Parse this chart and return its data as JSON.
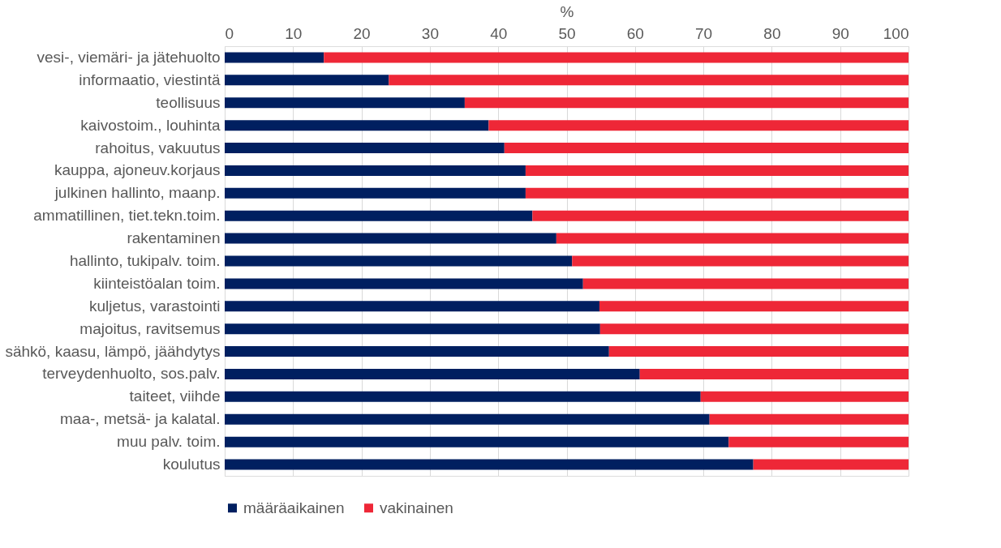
{
  "chart_data": {
    "type": "bar",
    "orientation": "horizontal",
    "stacked": true,
    "xlabel": "%",
    "categories": [
      "vesi-, viemäri- ja jätehuolto",
      "informaatio, viestintä",
      "teollisuus",
      "kaivostoim., louhinta",
      "rahoitus, vakuutus",
      "kauppa, ajoneuv.korjaus",
      "julkinen hallinto, maanp.",
      "ammatillinen, tiet.tekn.toim.",
      "rakentaminen",
      "hallinto, tukipalv. toim.",
      "kiinteistöalan toim.",
      "kuljetus, varastointi",
      "majoitus, ravitsemus",
      "sähkö, kaasu, lämpö, jäähdytys",
      "terveydenhuolto, sos.palv.",
      "taiteet, viihde",
      "maa-, metsä- ja kalatal.",
      "muu palv. toim.",
      "koulutus"
    ],
    "series": [
      {
        "name": "määräaikainen",
        "color": "#001f60",
        "values": [
          14.5,
          24.0,
          35.1,
          38.6,
          40.9,
          44.0,
          44.0,
          45.0,
          48.5,
          50.8,
          52.4,
          54.8,
          54.9,
          56.2,
          60.7,
          69.6,
          70.9,
          73.7,
          77.3
        ]
      },
      {
        "name": "vakinainen",
        "color": "#ee2737",
        "values": [
          85.5,
          76.0,
          64.9,
          61.4,
          59.1,
          56.0,
          56.0,
          55.0,
          51.5,
          49.2,
          47.6,
          45.2,
          45.1,
          43.8,
          39.3,
          30.4,
          29.1,
          26.3,
          22.7
        ]
      }
    ],
    "xlim": [
      0,
      100
    ],
    "xticks": [
      0,
      10,
      20,
      30,
      40,
      50,
      60,
      70,
      80,
      90,
      100
    ],
    "grid": "x",
    "legend": "bottom"
  }
}
